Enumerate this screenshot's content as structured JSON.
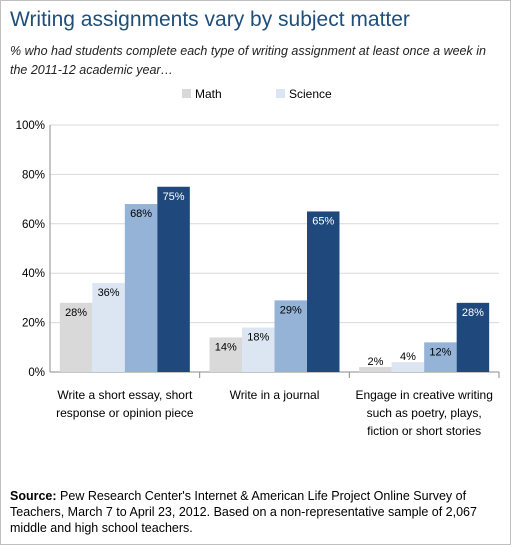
{
  "title": "Writing assignments vary by subject matter",
  "subtitle": "% who had students complete each type of writing assignment at least once a week in the 2011-12 academic year…",
  "source": {
    "label": "Source:",
    "text": "Pew Research Center's Internet & American Life Project Online Survey of Teachers, March 7 to April 23, 2012.  Based on a non-representative sample of 2,067 middle and high school teachers."
  },
  "chart_data": {
    "type": "bar",
    "categories": [
      [
        "Write a short essay, short",
        "response or opinion piece"
      ],
      [
        "Write in a journal"
      ],
      [
        "Engage in creative writing",
        "such as poetry, plays,",
        "fiction or short stories"
      ]
    ],
    "series": [
      {
        "name": "Math",
        "values": [
          28,
          14,
          2
        ],
        "labels": [
          "28%",
          "14%",
          "2%"
        ],
        "color": "#d9d9d9"
      },
      {
        "name": "Science",
        "values": [
          36,
          18,
          4
        ],
        "labels": [
          "36%",
          "18%",
          "4%"
        ],
        "color": "#dce6f2"
      },
      {
        "name": "",
        "values": [
          68,
          29,
          12
        ],
        "labels": [
          "68%",
          "29%",
          "12%"
        ],
        "color": "#95b3d7"
      },
      {
        "name": "",
        "values": [
          75,
          65,
          28
        ],
        "labels": [
          "75%",
          "65%",
          "28%"
        ],
        "color": "#1f497d"
      }
    ],
    "yticks": [
      "0%",
      "20%",
      "40%",
      "60%",
      "80%",
      "100%"
    ],
    "ylim": [
      0,
      100
    ],
    "grid": true,
    "legend_position": "top"
  }
}
